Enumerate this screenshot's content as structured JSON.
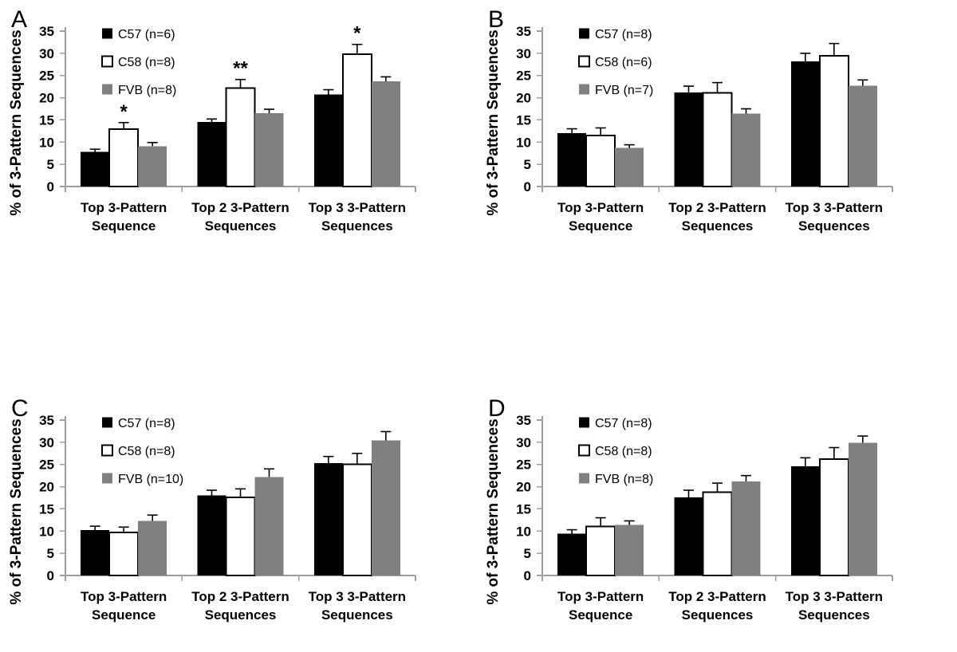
{
  "figure": {
    "background": "#ffffff",
    "axis_color": "#9e9e9e",
    "text_color": "#000000",
    "error_bar_color": "#000000",
    "panel_letters": [
      "A",
      "B",
      "C",
      "D"
    ],
    "series_colors": {
      "C57": "#000000",
      "C58": "#ffffff",
      "FVB": "#808080"
    },
    "legend_position": "top-left-inside",
    "grid": "off"
  },
  "chart_data": [
    {
      "type": "bar",
      "panel": "A",
      "title": "",
      "xlabel": "",
      "ylabel": "% of 3-Pattern Sequences",
      "ylim": [
        0,
        35
      ],
      "yticks": [
        0,
        5,
        10,
        15,
        20,
        25,
        30,
        35
      ],
      "categories": [
        "Top 3-Pattern Sequence",
        "Top 2 3-Pattern Sequences",
        "Top 3 3-Pattern Sequences"
      ],
      "series": [
        {
          "name": "C57 (n=6)",
          "fill": "#000000",
          "stroke": "#000000",
          "values": [
            7.8,
            14.5,
            20.7
          ],
          "errors": [
            0.6,
            0.7,
            1.1
          ]
        },
        {
          "name": "C58 (n=8)",
          "fill": "#ffffff",
          "stroke": "#000000",
          "values": [
            12.9,
            22.2,
            29.8
          ],
          "errors": [
            1.5,
            1.9,
            2.2
          ]
        },
        {
          "name": "FVB (n=8)",
          "fill": "#808080",
          "stroke": "#808080",
          "values": [
            9.1,
            16.5,
            23.7
          ],
          "errors": [
            0.8,
            0.9,
            1.0
          ]
        }
      ],
      "significance": [
        {
          "category_index": 0,
          "series_index": 1,
          "label": "*"
        },
        {
          "category_index": 1,
          "series_index": 1,
          "label": "**"
        },
        {
          "category_index": 2,
          "series_index": 1,
          "label": "*"
        }
      ]
    },
    {
      "type": "bar",
      "panel": "B",
      "title": "",
      "xlabel": "",
      "ylabel": "% of 3-Pattern Sequences",
      "ylim": [
        0,
        35
      ],
      "yticks": [
        0,
        5,
        10,
        15,
        20,
        25,
        30,
        35
      ],
      "categories": [
        "Top 3-Pattern Sequence",
        "Top 2 3-Pattern Sequences",
        "Top 3 3-Pattern Sequences"
      ],
      "series": [
        {
          "name": "C57 (n=8)",
          "fill": "#000000",
          "stroke": "#000000",
          "values": [
            12.0,
            21.2,
            28.2
          ],
          "errors": [
            1.0,
            1.4,
            1.8
          ]
        },
        {
          "name": "C58 (n=6)",
          "fill": "#ffffff",
          "stroke": "#000000",
          "values": [
            11.5,
            21.1,
            29.4
          ],
          "errors": [
            1.7,
            2.3,
            2.8
          ]
        },
        {
          "name": "FVB (n=7)",
          "fill": "#808080",
          "stroke": "#808080",
          "values": [
            8.7,
            16.4,
            22.7
          ],
          "errors": [
            0.7,
            1.1,
            1.3
          ]
        }
      ],
      "significance": []
    },
    {
      "type": "bar",
      "panel": "C",
      "title": "",
      "xlabel": "",
      "ylabel": "% of 3-Pattern Sequences",
      "ylim": [
        0,
        35
      ],
      "yticks": [
        0,
        5,
        10,
        15,
        20,
        25,
        30,
        35
      ],
      "categories": [
        "Top 3-Pattern Sequence",
        "Top 2 3-Pattern Sequences",
        "Top 3 3-Pattern Sequences"
      ],
      "series": [
        {
          "name": "C57 (n=8)",
          "fill": "#000000",
          "stroke": "#000000",
          "values": [
            10.2,
            18.0,
            25.3
          ],
          "errors": [
            0.9,
            1.2,
            1.5
          ]
        },
        {
          "name": "C58 (n=8)",
          "fill": "#ffffff",
          "stroke": "#000000",
          "values": [
            9.7,
            17.6,
            25.0
          ],
          "errors": [
            1.2,
            1.9,
            2.5
          ]
        },
        {
          "name": "FVB (n=10)",
          "fill": "#808080",
          "stroke": "#808080",
          "values": [
            12.3,
            22.2,
            30.4
          ],
          "errors": [
            1.3,
            1.8,
            2.0
          ]
        }
      ],
      "significance": []
    },
    {
      "type": "bar",
      "panel": "D",
      "title": "",
      "xlabel": "",
      "ylabel": "% of 3-Pattern Sequences",
      "ylim": [
        0,
        35
      ],
      "yticks": [
        0,
        5,
        10,
        15,
        20,
        25,
        30,
        35
      ],
      "categories": [
        "Top 3-Pattern Sequence",
        "Top 2 3-Pattern Sequences",
        "Top 3 3-Pattern Sequences"
      ],
      "series": [
        {
          "name": "C57 (n=8)",
          "fill": "#000000",
          "stroke": "#000000",
          "values": [
            9.4,
            17.6,
            24.6
          ],
          "errors": [
            0.9,
            1.6,
            1.9
          ]
        },
        {
          "name": "C58 (n=8)",
          "fill": "#ffffff",
          "stroke": "#000000",
          "values": [
            11.0,
            18.8,
            26.2
          ],
          "errors": [
            2.0,
            2.0,
            2.6
          ]
        },
        {
          "name": "FVB (n=8)",
          "fill": "#808080",
          "stroke": "#808080",
          "values": [
            11.4,
            21.2,
            29.9
          ],
          "errors": [
            0.9,
            1.3,
            1.5
          ]
        }
      ],
      "significance": []
    }
  ]
}
